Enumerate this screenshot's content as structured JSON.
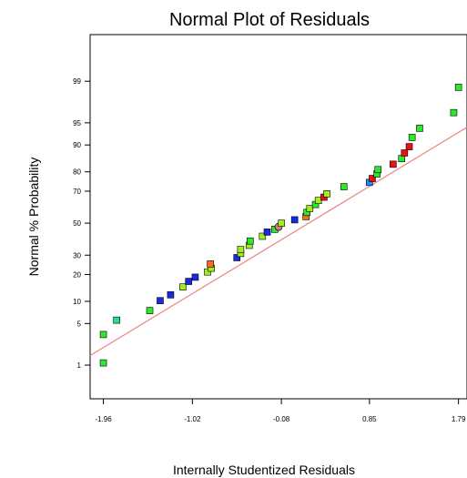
{
  "chart_data": {
    "type": "scatter",
    "title": "Normal Plot of Residuals",
    "xlabel": "Internally Studentized Residuals",
    "ylabel": "Normal % Probability",
    "xlim": [
      -2.1,
      1.88
    ],
    "ylim_probability": [
      0.2,
      99.9
    ],
    "y_scale": "normal-probability",
    "grid": false,
    "x_ticks": [
      -1.96,
      -1.02,
      -0.08,
      0.85,
      1.79
    ],
    "x_tick_labels": [
      "-1.96",
      "-1.02",
      "-0.08",
      "0.85",
      "1.79"
    ],
    "y_ticks": [
      1,
      5,
      10,
      20,
      30,
      50,
      70,
      80,
      90,
      95,
      99
    ],
    "y_tick_labels": [
      "1",
      "5",
      "10",
      "20",
      "30",
      "50",
      "70",
      "80",
      "90",
      "95",
      "99"
    ],
    "reference_line": {
      "x": [
        -2.1,
        1.88
      ],
      "y_probability": [
        1.5,
        94.2
      ],
      "color": "#f08080"
    },
    "colors": {
      "green": "#2ee82e",
      "lime": "#a0ee1e",
      "teal": "#22e090",
      "blue": "#1a2ae0",
      "skyblue": "#1e90ff",
      "red": "#ee1111",
      "orange": "#ff6a1a",
      "salmon": "#d88080"
    },
    "points": [
      {
        "x": -1.96,
        "p": 1.1,
        "color": "green"
      },
      {
        "x": -1.96,
        "p": 3.4,
        "color": "green"
      },
      {
        "x": -1.82,
        "p": 5.6,
        "color": "teal"
      },
      {
        "x": -1.47,
        "p": 7.6,
        "color": "green"
      },
      {
        "x": -1.36,
        "p": 10.2,
        "color": "blue"
      },
      {
        "x": -1.25,
        "p": 12.0,
        "color": "blue"
      },
      {
        "x": -1.12,
        "p": 14.8,
        "color": "lime"
      },
      {
        "x": -1.06,
        "p": 17.0,
        "color": "blue"
      },
      {
        "x": -0.99,
        "p": 18.8,
        "color": "blue"
      },
      {
        "x": -0.86,
        "p": 21.2,
        "color": "lime"
      },
      {
        "x": -0.82,
        "p": 23.0,
        "color": "lime"
      },
      {
        "x": -0.83,
        "p": 25.2,
        "color": "orange"
      },
      {
        "x": -0.55,
        "p": 28.6,
        "color": "blue"
      },
      {
        "x": -0.51,
        "p": 31.0,
        "color": "lime"
      },
      {
        "x": -0.51,
        "p": 33.3,
        "color": "lime"
      },
      {
        "x": -0.42,
        "p": 35.8,
        "color": "lime"
      },
      {
        "x": -0.41,
        "p": 38.5,
        "color": "green"
      },
      {
        "x": -0.28,
        "p": 41.5,
        "color": "lime"
      },
      {
        "x": -0.23,
        "p": 44.2,
        "color": "blue"
      },
      {
        "x": -0.15,
        "p": 46.0,
        "color": "green"
      },
      {
        "x": -0.11,
        "p": 47.6,
        "color": "salmon"
      },
      {
        "x": -0.08,
        "p": 50.0,
        "color": "lime"
      },
      {
        "x": 0.06,
        "p": 52.2,
        "color": "blue"
      },
      {
        "x": 0.18,
        "p": 54.3,
        "color": "orange"
      },
      {
        "x": 0.19,
        "p": 57.0,
        "color": "green"
      },
      {
        "x": 0.22,
        "p": 59.5,
        "color": "lime"
      },
      {
        "x": 0.28,
        "p": 62.0,
        "color": "green"
      },
      {
        "x": 0.31,
        "p": 64.5,
        "color": "lime"
      },
      {
        "x": 0.37,
        "p": 66.5,
        "color": "red"
      },
      {
        "x": 0.4,
        "p": 68.5,
        "color": "lime"
      },
      {
        "x": 0.58,
        "p": 72.5,
        "color": "green"
      },
      {
        "x": 0.85,
        "p": 74.8,
        "color": "skyblue"
      },
      {
        "x": 0.88,
        "p": 76.8,
        "color": "red"
      },
      {
        "x": 0.93,
        "p": 79.0,
        "color": "green"
      },
      {
        "x": 0.94,
        "p": 81.0,
        "color": "green"
      },
      {
        "x": 1.1,
        "p": 83.3,
        "color": "red"
      },
      {
        "x": 1.19,
        "p": 85.5,
        "color": "green"
      },
      {
        "x": 1.22,
        "p": 87.5,
        "color": "red"
      },
      {
        "x": 1.27,
        "p": 89.5,
        "color": "red"
      },
      {
        "x": 1.3,
        "p": 92.0,
        "color": "green"
      },
      {
        "x": 1.38,
        "p": 94.0,
        "color": "green"
      },
      {
        "x": 1.74,
        "p": 96.5,
        "color": "green"
      },
      {
        "x": 1.79,
        "p": 98.7,
        "color": "green"
      }
    ]
  }
}
